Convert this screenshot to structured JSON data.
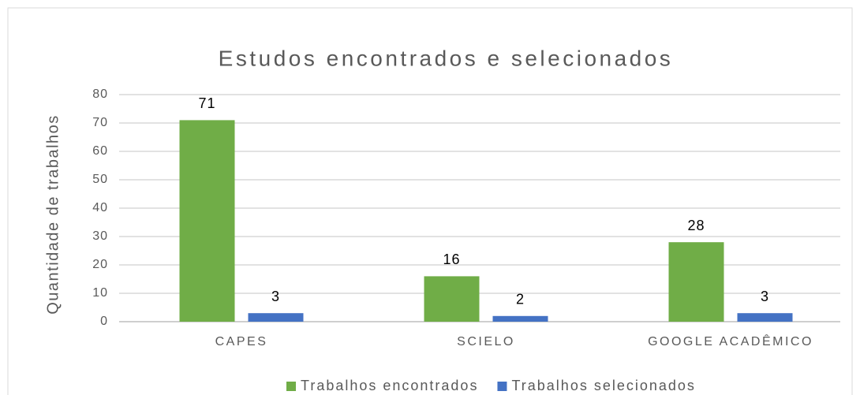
{
  "chart_data": {
    "type": "bar",
    "title": "Estudos encontrados e selecionados",
    "y_label": "Quantidade de trabalhos",
    "categories": [
      "CAPES",
      "SCIELO",
      "GOOGLE ACADÊMICO"
    ],
    "series": [
      {
        "name": "Trabalhos encontrados",
        "color": "#70ad47",
        "values": [
          71,
          16,
          28
        ]
      },
      {
        "name": "Trabalhos selecionados",
        "color": "#4472c4",
        "values": [
          3,
          2,
          3
        ]
      }
    ],
    "ylim": [
      0,
      80
    ],
    "yticks": [
      0,
      10,
      20,
      30,
      40,
      50,
      60,
      70,
      80
    ],
    "grid": true,
    "legend": "bottom"
  }
}
